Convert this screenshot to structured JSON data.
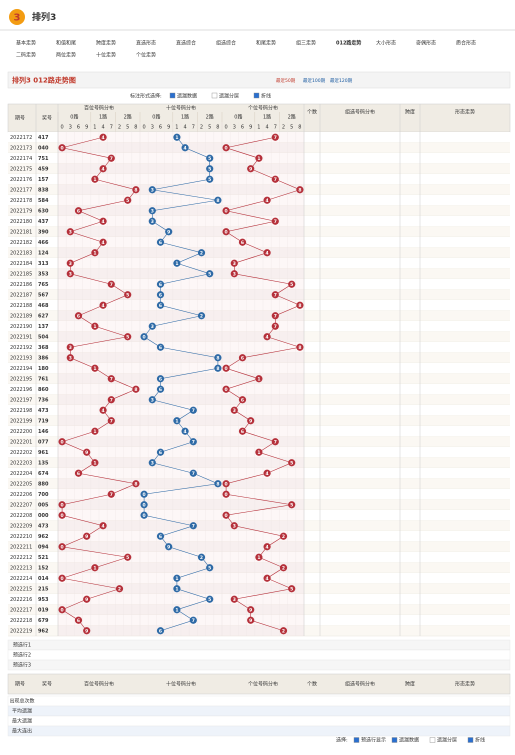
{
  "header": {
    "logo": "3",
    "title": "排列3"
  },
  "nav": [
    "基本走势",
    "和值和尾",
    "跨度走势",
    "直选形态",
    "直选综合",
    "组选综合",
    "和尾走势",
    "组三走势",
    "012路走势",
    "大小形态",
    "奇偶形态",
    "质合形态",
    "二码走势",
    "两位走势",
    "十位走势",
    "个位走势"
  ],
  "chart_title": "排列3 012路走势图",
  "period_links": [
    "最近50期",
    "最近100期",
    "最近120期"
  ],
  "options_label": "标注形式选择:",
  "options": [
    "遗漏数据",
    "遗漏分层",
    "折线"
  ],
  "table": {
    "head_issue": "期号",
    "head_number": "奖号",
    "zones": [
      "百位号码分布",
      "十位号码分布",
      "个位号码分布"
    ],
    "routes": [
      "0路",
      "1路",
      "2路"
    ],
    "zone_digits": [
      0,
      3,
      6,
      9,
      1,
      4,
      7,
      2,
      5,
      8
    ],
    "extra_heads": [
      "个数",
      "组选号码分布",
      "跨度",
      "形态走势"
    ],
    "rows": [
      [
        "2022172",
        "417",
        4,
        1,
        7
      ],
      [
        "2022173",
        "040",
        0,
        4,
        0
      ],
      [
        "2022174",
        "751",
        7,
        5,
        1
      ],
      [
        "2022175",
        "459",
        4,
        5,
        9
      ],
      [
        "2022176",
        "157",
        1,
        5,
        7
      ],
      [
        "2022177",
        "838",
        8,
        3,
        8
      ],
      [
        "2022178",
        "584",
        5,
        8,
        4
      ],
      [
        "2022179",
        "630",
        6,
        3,
        0
      ],
      [
        "2022180",
        "437",
        4,
        3,
        7
      ],
      [
        "2022181",
        "390",
        3,
        9,
        0
      ],
      [
        "2022182",
        "466",
        4,
        6,
        6
      ],
      [
        "2022183",
        "124",
        1,
        2,
        4
      ],
      [
        "2022184",
        "313",
        3,
        1,
        3
      ],
      [
        "2022185",
        "353",
        3,
        5,
        3
      ],
      [
        "2022186",
        "765",
        7,
        6,
        5
      ],
      [
        "2022187",
        "567",
        5,
        6,
        7
      ],
      [
        "2022188",
        "468",
        4,
        6,
        8
      ],
      [
        "2022189",
        "627",
        6,
        2,
        7
      ],
      [
        "2022190",
        "137",
        1,
        3,
        7
      ],
      [
        "2022191",
        "504",
        5,
        0,
        4
      ],
      [
        "2022192",
        "368",
        3,
        6,
        8
      ],
      [
        "2022193",
        "386",
        3,
        8,
        6
      ],
      [
        "2022194",
        "180",
        1,
        8,
        0
      ],
      [
        "2022195",
        "761",
        7,
        6,
        1
      ],
      [
        "2022196",
        "860",
        8,
        6,
        0
      ],
      [
        "2022197",
        "736",
        7,
        3,
        6
      ],
      [
        "2022198",
        "473",
        4,
        7,
        3
      ],
      [
        "2022199",
        "719",
        7,
        1,
        9
      ],
      [
        "2022200",
        "146",
        1,
        4,
        6
      ],
      [
        "2022201",
        "077",
        0,
        7,
        7
      ],
      [
        "2022202",
        "961",
        9,
        6,
        1
      ],
      [
        "2022203",
        "135",
        1,
        3,
        5
      ],
      [
        "2022204",
        "674",
        6,
        7,
        4
      ],
      [
        "2022205",
        "880",
        8,
        8,
        0
      ],
      [
        "2022206",
        "700",
        7,
        0,
        0
      ],
      [
        "2022207",
        "005",
        0,
        0,
        5
      ],
      [
        "2022208",
        "000",
        0,
        0,
        0
      ],
      [
        "2022209",
        "473",
        4,
        7,
        3
      ],
      [
        "2022210",
        "962",
        9,
        6,
        2
      ],
      [
        "2022211",
        "094",
        0,
        9,
        4
      ],
      [
        "2022212",
        "521",
        5,
        2,
        1
      ],
      [
        "2022213",
        "152",
        1,
        5,
        2
      ],
      [
        "2022214",
        "014",
        0,
        1,
        4
      ],
      [
        "2022215",
        "215",
        2,
        1,
        5
      ],
      [
        "2022216",
        "953",
        9,
        5,
        3
      ],
      [
        "2022217",
        "019",
        0,
        1,
        9
      ],
      [
        "2022218",
        "679",
        6,
        7,
        9
      ],
      [
        "2022219",
        "962",
        9,
        6,
        2
      ]
    ],
    "footer_rows": [
      "预选行1",
      "预选行2",
      "预选行3"
    ],
    "stat_rows": [
      "出现总次数",
      "平均遗漏",
      "最大遗漏",
      "最大连出"
    ]
  },
  "bottom_options_label": "选择:",
  "bottom_options": [
    "预选行显示",
    "遗漏数据",
    "遗漏分层",
    "折线"
  ]
}
